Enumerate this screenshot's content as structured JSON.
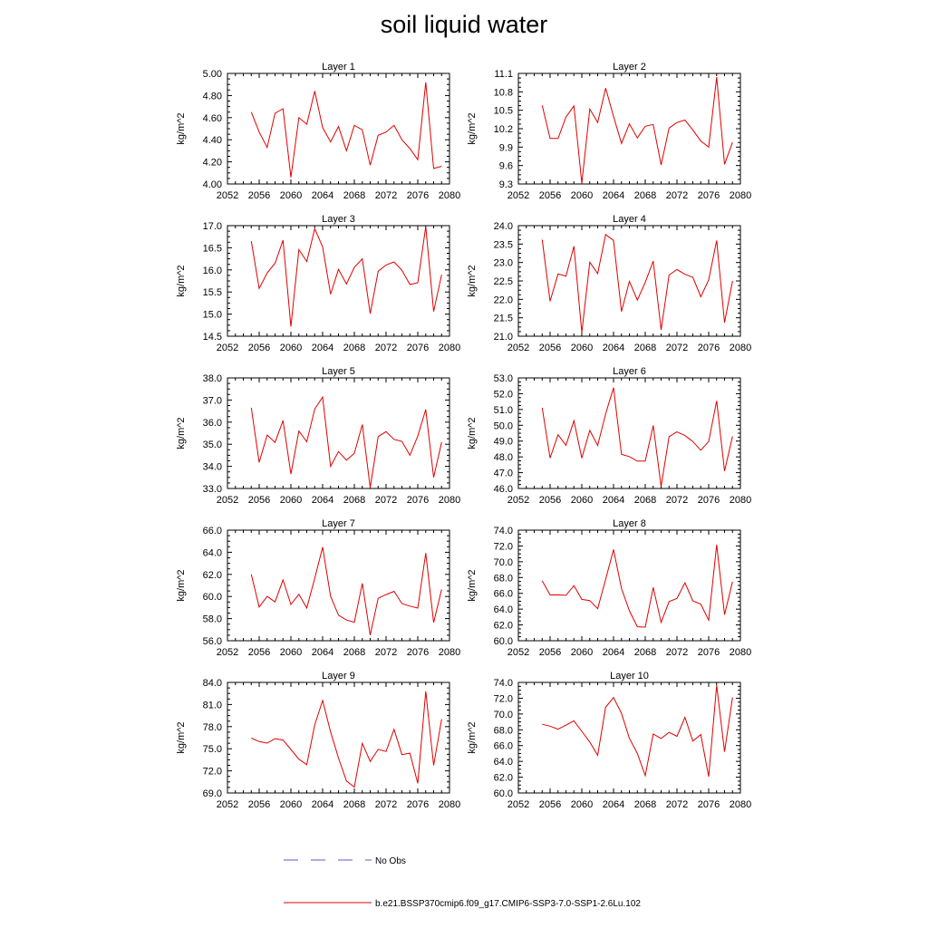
{
  "figure": {
    "title": "soil liquid water"
  },
  "legend": {
    "entries": [
      {
        "label": "No Obs",
        "color": "#5a5ad6",
        "style": "dashed"
      },
      {
        "label": "b.e21.BSSP370cmip6.f09_g17.CMIP6-SSP3-7.0-SSP1-2.6Lu.102",
        "color": "#e00000",
        "style": "solid"
      }
    ]
  },
  "chart_data": [
    {
      "type": "line",
      "title": "Layer 1",
      "ylabel": "kg/m^2",
      "xlim": [
        2052,
        2080
      ],
      "xticks": [
        2052,
        2056,
        2060,
        2064,
        2068,
        2072,
        2076,
        2080
      ],
      "ylim": [
        4.0,
        5.0
      ],
      "yticks": [
        "4.00",
        "4.20",
        "4.40",
        "4.60",
        "4.80",
        "5.00"
      ],
      "x": [
        2055,
        2056,
        2057,
        2058,
        2059,
        2060,
        2061,
        2062,
        2063,
        2064,
        2065,
        2066,
        2067,
        2068,
        2069,
        2070,
        2071,
        2072,
        2073,
        2074,
        2075,
        2076,
        2077,
        2078,
        2079
      ],
      "series": [
        {
          "color": "#e00000",
          "values": [
            4.65,
            4.47,
            4.33,
            4.64,
            4.68,
            4.06,
            4.6,
            4.54,
            4.84,
            4.51,
            4.38,
            4.52,
            4.3,
            4.53,
            4.49,
            4.17,
            4.44,
            4.47,
            4.53,
            4.4,
            4.32,
            4.22,
            4.92,
            4.14,
            4.16
          ]
        }
      ]
    },
    {
      "type": "line",
      "title": "Layer 2",
      "ylabel": "kg/m^2",
      "xlim": [
        2052,
        2080
      ],
      "xticks": [
        2052,
        2056,
        2060,
        2064,
        2068,
        2072,
        2076,
        2080
      ],
      "ylim": [
        9.3,
        11.1
      ],
      "yticks": [
        "9.3",
        "9.6",
        "9.9",
        "10.2",
        "10.5",
        "10.8",
        "11.1"
      ],
      "x": [
        2055,
        2056,
        2057,
        2058,
        2059,
        2060,
        2061,
        2062,
        2063,
        2064,
        2065,
        2066,
        2067,
        2068,
        2069,
        2070,
        2071,
        2072,
        2073,
        2074,
        2075,
        2076,
        2077,
        2078,
        2079
      ],
      "series": [
        {
          "color": "#e00000",
          "values": [
            10.58,
            10.04,
            10.04,
            10.39,
            10.57,
            9.31,
            10.52,
            10.3,
            10.86,
            10.4,
            9.96,
            10.28,
            10.05,
            10.24,
            10.27,
            9.61,
            10.21,
            10.3,
            10.34,
            10.18,
            10.0,
            9.9,
            11.04,
            9.62,
            9.98
          ]
        }
      ]
    },
    {
      "type": "line",
      "title": "Layer 3",
      "ylabel": "kg/m^2",
      "xlim": [
        2052,
        2080
      ],
      "xticks": [
        2052,
        2056,
        2060,
        2064,
        2068,
        2072,
        2076,
        2080
      ],
      "ylim": [
        14.5,
        17.0
      ],
      "yticks": [
        "14.5",
        "15.0",
        "15.5",
        "16.0",
        "16.5",
        "17.0"
      ],
      "x": [
        2055,
        2056,
        2057,
        2058,
        2059,
        2060,
        2061,
        2062,
        2063,
        2064,
        2065,
        2066,
        2067,
        2068,
        2069,
        2070,
        2071,
        2072,
        2073,
        2074,
        2075,
        2076,
        2077,
        2078,
        2079
      ],
      "series": [
        {
          "color": "#e00000",
          "values": [
            16.65,
            15.58,
            15.93,
            16.15,
            16.67,
            14.72,
            16.46,
            16.19,
            16.93,
            16.52,
            15.45,
            16.01,
            15.68,
            16.06,
            16.25,
            15.01,
            15.97,
            16.11,
            16.18,
            15.99,
            15.67,
            15.71,
            16.98,
            15.06,
            15.89
          ]
        }
      ]
    },
    {
      "type": "line",
      "title": "Layer 4",
      "ylabel": "kg/m^2",
      "xlim": [
        2052,
        2080
      ],
      "xticks": [
        2052,
        2056,
        2060,
        2064,
        2068,
        2072,
        2076,
        2080
      ],
      "ylim": [
        21.0,
        24.0
      ],
      "yticks": [
        "21.0",
        "21.5",
        "22.0",
        "22.5",
        "23.0",
        "23.5",
        "24.0"
      ],
      "x": [
        2055,
        2056,
        2057,
        2058,
        2059,
        2060,
        2061,
        2062,
        2063,
        2064,
        2065,
        2066,
        2067,
        2068,
        2069,
        2070,
        2071,
        2072,
        2073,
        2074,
        2075,
        2076,
        2077,
        2078,
        2079
      ],
      "series": [
        {
          "color": "#e00000",
          "values": [
            23.62,
            21.95,
            22.69,
            22.63,
            23.44,
            21.1,
            23.01,
            22.7,
            23.76,
            23.6,
            21.67,
            22.49,
            21.98,
            22.46,
            23.04,
            21.17,
            22.66,
            22.81,
            22.68,
            22.6,
            22.07,
            22.53,
            23.6,
            21.37,
            22.5
          ]
        }
      ]
    },
    {
      "type": "line",
      "title": "Layer 5",
      "ylabel": "kg/m^2",
      "xlim": [
        2052,
        2080
      ],
      "xticks": [
        2052,
        2056,
        2060,
        2064,
        2068,
        2072,
        2076,
        2080
      ],
      "ylim": [
        33.0,
        38.0
      ],
      "yticks": [
        "33.0",
        "34.0",
        "35.0",
        "36.0",
        "37.0",
        "38.0"
      ],
      "x": [
        2055,
        2056,
        2057,
        2058,
        2059,
        2060,
        2061,
        2062,
        2063,
        2064,
        2065,
        2066,
        2067,
        2068,
        2069,
        2070,
        2071,
        2072,
        2073,
        2074,
        2075,
        2076,
        2077,
        2078,
        2079
      ],
      "series": [
        {
          "color": "#e00000",
          "values": [
            36.65,
            34.18,
            35.42,
            35.08,
            36.07,
            33.65,
            35.6,
            35.11,
            36.59,
            37.13,
            34.0,
            34.67,
            34.28,
            34.59,
            35.89,
            33.04,
            35.35,
            35.57,
            35.22,
            35.13,
            34.5,
            35.37,
            36.57,
            33.5,
            35.09
          ]
        }
      ]
    },
    {
      "type": "line",
      "title": "Layer 6",
      "ylabel": "kg/m^2",
      "xlim": [
        2052,
        2080
      ],
      "xticks": [
        2052,
        2056,
        2060,
        2064,
        2068,
        2072,
        2076,
        2080
      ],
      "ylim": [
        46.0,
        53.0
      ],
      "yticks": [
        "46.0",
        "47.0",
        "48.0",
        "49.0",
        "50.0",
        "51.0",
        "52.0",
        "53.0"
      ],
      "x": [
        2055,
        2056,
        2057,
        2058,
        2059,
        2060,
        2061,
        2062,
        2063,
        2064,
        2065,
        2066,
        2067,
        2068,
        2069,
        2070,
        2071,
        2072,
        2073,
        2074,
        2075,
        2076,
        2077,
        2078,
        2079
      ],
      "series": [
        {
          "color": "#e00000",
          "values": [
            51.11,
            47.93,
            49.4,
            48.73,
            50.29,
            47.92,
            49.68,
            48.72,
            50.73,
            52.38,
            48.16,
            48.02,
            47.73,
            47.74,
            49.99,
            46.13,
            49.28,
            49.58,
            49.35,
            48.97,
            48.42,
            48.97,
            51.55,
            47.1,
            49.3
          ]
        }
      ]
    },
    {
      "type": "line",
      "title": "Layer 7",
      "ylabel": "kg/m^2",
      "xlim": [
        2052,
        2080
      ],
      "xticks": [
        2052,
        2056,
        2060,
        2064,
        2068,
        2072,
        2076,
        2080
      ],
      "ylim": [
        56.0,
        66.0
      ],
      "yticks": [
        "56.0",
        "58.0",
        "60.0",
        "62.0",
        "64.0",
        "66.0"
      ],
      "x": [
        2055,
        2056,
        2057,
        2058,
        2059,
        2060,
        2061,
        2062,
        2063,
        2064,
        2065,
        2066,
        2067,
        2068,
        2069,
        2070,
        2071,
        2072,
        2073,
        2074,
        2075,
        2076,
        2077,
        2078,
        2079
      ],
      "series": [
        {
          "color": "#e00000",
          "values": [
            62.0,
            59.05,
            60.01,
            59.51,
            61.5,
            59.28,
            60.2,
            58.96,
            61.65,
            64.46,
            60.01,
            58.31,
            57.88,
            57.67,
            61.19,
            56.5,
            59.84,
            60.17,
            60.47,
            59.36,
            59.13,
            58.95,
            63.93,
            57.64,
            60.64
          ]
        }
      ]
    },
    {
      "type": "line",
      "title": "Layer 8",
      "ylabel": "kg/m^2",
      "xlim": [
        2052,
        2080
      ],
      "xticks": [
        2052,
        2056,
        2060,
        2064,
        2068,
        2072,
        2076,
        2080
      ],
      "ylim": [
        60.0,
        74.0
      ],
      "yticks": [
        "60.0",
        "62.0",
        "64.0",
        "66.0",
        "68.0",
        "70.0",
        "72.0",
        "74.0"
      ],
      "x": [
        2055,
        2056,
        2057,
        2058,
        2059,
        2060,
        2061,
        2062,
        2063,
        2064,
        2065,
        2066,
        2067,
        2068,
        2069,
        2070,
        2071,
        2072,
        2073,
        2074,
        2075,
        2076,
        2077,
        2078,
        2079
      ],
      "series": [
        {
          "color": "#e00000",
          "values": [
            67.59,
            65.8,
            65.81,
            65.75,
            66.98,
            65.23,
            65.08,
            64.06,
            67.77,
            71.54,
            66.6,
            63.8,
            61.77,
            61.72,
            66.75,
            62.32,
            64.96,
            65.35,
            67.35,
            65.05,
            64.63,
            62.59,
            72.15,
            63.31,
            67.47
          ]
        }
      ]
    },
    {
      "type": "line",
      "title": "Layer 9",
      "ylabel": "kg/m^2",
      "xlim": [
        2052,
        2080
      ],
      "xticks": [
        2052,
        2056,
        2060,
        2064,
        2068,
        2072,
        2076,
        2080
      ],
      "ylim": [
        69.0,
        84.0
      ],
      "yticks": [
        "69.0",
        "72.0",
        "75.0",
        "78.0",
        "81.0",
        "84.0"
      ],
      "x": [
        2055,
        2056,
        2057,
        2058,
        2059,
        2060,
        2061,
        2062,
        2063,
        2064,
        2065,
        2066,
        2067,
        2068,
        2069,
        2070,
        2071,
        2072,
        2073,
        2074,
        2075,
        2076,
        2077,
        2078,
        2079
      ],
      "series": [
        {
          "color": "#e00000",
          "values": [
            76.44,
            75.97,
            75.76,
            76.37,
            76.18,
            74.9,
            73.58,
            72.83,
            78.23,
            81.55,
            77.28,
            73.75,
            70.62,
            69.8,
            75.74,
            73.28,
            74.92,
            74.63,
            77.63,
            74.2,
            74.4,
            70.3,
            82.79,
            72.75,
            78.99
          ]
        }
      ]
    },
    {
      "type": "line",
      "title": "Layer 10",
      "ylabel": "kg/m^2",
      "xlim": [
        2052,
        2080
      ],
      "xticks": [
        2052,
        2056,
        2060,
        2064,
        2068,
        2072,
        2076,
        2080
      ],
      "ylim": [
        60.0,
        74.0
      ],
      "yticks": [
        "60.0",
        "62.0",
        "64.0",
        "66.0",
        "68.0",
        "70.0",
        "72.0",
        "74.0"
      ],
      "x": [
        2055,
        2056,
        2057,
        2058,
        2059,
        2060,
        2061,
        2062,
        2063,
        2064,
        2065,
        2066,
        2067,
        2068,
        2069,
        2070,
        2071,
        2072,
        2073,
        2074,
        2075,
        2076,
        2077,
        2078,
        2079
      ],
      "series": [
        {
          "color": "#e00000",
          "values": [
            68.7,
            68.46,
            68.08,
            68.58,
            69.14,
            67.8,
            66.45,
            64.77,
            70.86,
            72.08,
            70.07,
            66.92,
            64.99,
            62.19,
            67.47,
            66.9,
            67.68,
            67.17,
            69.58,
            66.56,
            67.39,
            62.06,
            73.63,
            65.21,
            72.09
          ]
        }
      ]
    }
  ]
}
